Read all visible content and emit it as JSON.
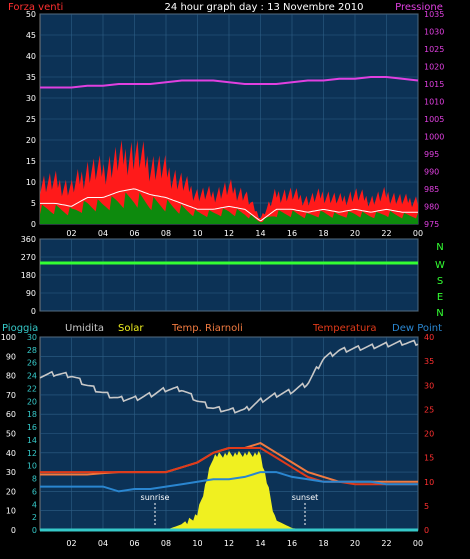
{
  "header": {
    "title": "24 hour graph day : 13 Novembre 2010",
    "left_label": "Forza venti",
    "right_label": "Pressione"
  },
  "colors": {
    "background": "#000000",
    "plot_bg": "#0c3256",
    "grid": "#2e5f87",
    "wind": "#ff1a1a",
    "wind_avg": "#ffffff",
    "wind_green": "#0d8a0d",
    "pressure": "#e040e0",
    "direction": "#33ff33",
    "humidity": "#c8c8c8",
    "solar": "#f0f020",
    "temperature": "#e03a1a",
    "temp_riarnoli": "#f07a40",
    "dew_point": "#2a86d0",
    "rain": "#36c9c9",
    "axis_left": "#ffffff",
    "axis_red": "#ff3030",
    "axis_magenta": "#e040e0",
    "axis_cyan": "#36c9c9"
  },
  "legend_bottom": {
    "pioggia": "Pioggia",
    "umidita": "Umidita",
    "solar": "Solar",
    "temp_riarnoli": "Temp. Riarnoli",
    "temperatura": "Temperatura",
    "dew_point": "Dew Point"
  },
  "compass": [
    "N",
    "W",
    "S",
    "E",
    "N"
  ],
  "annotations": {
    "sunrise": "sunrise",
    "sunset": "sunset"
  },
  "x_ticks": [
    "02",
    "04",
    "06",
    "08",
    "10",
    "12",
    "14",
    "16",
    "18",
    "20",
    "22",
    "00"
  ],
  "chart_data": [
    {
      "type": "area",
      "title": "24 hour graph day : 13 Novembre 2010",
      "ylabel": "Forza venti",
      "y2label": "Pressione",
      "ylim": [
        0,
        50
      ],
      "y2lim": [
        975,
        1035
      ],
      "y_ticks": [
        0,
        5,
        10,
        15,
        20,
        25,
        30,
        35,
        40,
        45,
        50
      ],
      "y2_ticks": [
        975,
        980,
        985,
        990,
        995,
        1000,
        1005,
        1010,
        1015,
        1020,
        1025,
        1030,
        1035
      ],
      "x": [
        "00",
        "01",
        "02",
        "03",
        "04",
        "05",
        "06",
        "07",
        "08",
        "09",
        "10",
        "11",
        "12",
        "13",
        "14",
        "15",
        "16",
        "17",
        "18",
        "19",
        "20",
        "21",
        "22",
        "23",
        "00"
      ],
      "series": [
        {
          "name": "Forza venti",
          "values": [
            7,
            7,
            6,
            9,
            9,
            11,
            12,
            10,
            9,
            7,
            5,
            5,
            6,
            5,
            1,
            5,
            5,
            4,
            5,
            4,
            5,
            4,
            5,
            4,
            4
          ]
        },
        {
          "name": "Pressione",
          "values": [
            1014,
            1014,
            1014,
            1014.5,
            1014.5,
            1015,
            1015,
            1015,
            1015.5,
            1016,
            1016,
            1016,
            1015.5,
            1015,
            1015,
            1015,
            1015.5,
            1016,
            1016,
            1016.5,
            1016.5,
            1017,
            1017,
            1016.5,
            1016
          ]
        }
      ]
    },
    {
      "type": "line",
      "ylabel": "",
      "ylim": [
        0,
        360
      ],
      "y_ticks": [
        0,
        90,
        180,
        270,
        360
      ],
      "x": [
        "00",
        "01",
        "02",
        "03",
        "04",
        "05",
        "06",
        "07",
        "08",
        "09",
        "10",
        "11",
        "12",
        "13",
        "14",
        "15",
        "16",
        "17",
        "18",
        "19",
        "20",
        "21",
        "22",
        "23",
        "00"
      ],
      "series": [
        {
          "values": [
            240,
            240,
            240,
            240,
            240,
            240,
            240,
            240,
            240,
            240,
            240,
            240,
            240,
            240,
            240,
            240,
            240,
            240,
            240,
            240,
            240,
            240,
            240,
            240,
            240
          ]
        }
      ]
    },
    {
      "type": "line",
      "ylim": [
        0,
        100
      ],
      "y_ticks": [
        0,
        10,
        20,
        30,
        40,
        50,
        60,
        70,
        80,
        90,
        100
      ],
      "y_ticks_pioggia": [
        0,
        2,
        4,
        6,
        8,
        10,
        12,
        14,
        16,
        18,
        20,
        22,
        24,
        26,
        28,
        30
      ],
      "y2lim": [
        0,
        40
      ],
      "y2_ticks": [
        0,
        5,
        10,
        15,
        20,
        25,
        30,
        35,
        40
      ],
      "x": [
        "00",
        "01",
        "02",
        "03",
        "04",
        "05",
        "06",
        "07",
        "08",
        "09",
        "10",
        "11",
        "12",
        "13",
        "14",
        "15",
        "16",
        "17",
        "18",
        "19",
        "20",
        "21",
        "22",
        "23",
        "00"
      ],
      "series": [
        {
          "name": "Umidita",
          "values": [
            80,
            81,
            80,
            75,
            71,
            68,
            68,
            70,
            73,
            73,
            67,
            63,
            62,
            62,
            67,
            70,
            72,
            76,
            89,
            93,
            94,
            95,
            96,
            97,
            97
          ]
        },
        {
          "name": "Solar",
          "values": [
            0,
            0,
            0,
            0,
            0,
            0,
            0,
            0,
            0,
            3,
            10,
            40,
            41,
            41,
            41,
            5,
            1,
            0,
            0,
            0,
            0,
            0,
            0,
            0,
            0
          ]
        },
        {
          "name": "Temp. Riarnoli",
          "values": [
            11.5,
            11.5,
            11.5,
            11.5,
            11.8,
            12,
            12,
            12,
            12,
            13,
            14,
            16,
            17,
            17,
            18,
            16,
            14,
            12,
            11,
            10,
            10,
            10,
            10,
            10,
            10
          ]
        },
        {
          "name": "Temperatura",
          "values": [
            12,
            12,
            12,
            12,
            12,
            12,
            12,
            12,
            12,
            13,
            14,
            16,
            17,
            17,
            17,
            15,
            13,
            11,
            10,
            10,
            9.5,
            9.5,
            9.5,
            9.5,
            9.5
          ]
        },
        {
          "name": "Dew Point",
          "values": [
            9,
            9,
            9,
            9,
            9,
            8,
            8.5,
            8.5,
            9,
            9.5,
            10,
            10.5,
            10.5,
            11,
            12,
            12,
            11,
            10.5,
            10,
            10,
            10,
            10,
            9.5,
            9.5,
            9.5
          ]
        },
        {
          "name": "Pioggia",
          "values": [
            0,
            0,
            0,
            0,
            0,
            0,
            0,
            0,
            0,
            0,
            0,
            0,
            0,
            0,
            0,
            0,
            0,
            0,
            0,
            0,
            0,
            0,
            0,
            0,
            0
          ]
        }
      ]
    }
  ]
}
